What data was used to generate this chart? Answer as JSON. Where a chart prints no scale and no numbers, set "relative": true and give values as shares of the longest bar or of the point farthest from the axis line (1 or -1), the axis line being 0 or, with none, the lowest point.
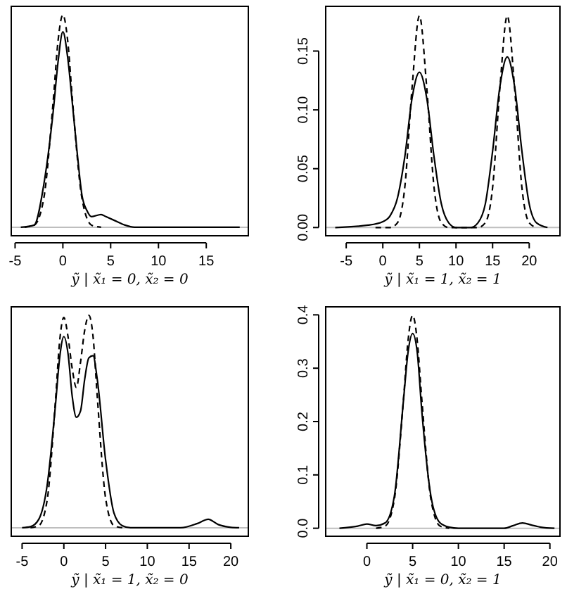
{
  "chart_data": [
    {
      "type": "line",
      "relative": true,
      "xlabel": "ỹ | x̃₁ = 0, x̃₂ = 0",
      "xlim": [
        -5.4,
        19.4
      ],
      "xticks": [
        -5,
        0,
        5,
        10,
        15
      ],
      "ref_lines": [
        {
          "axis": "y",
          "value": 0,
          "color": "#bebebe"
        }
      ],
      "series": [
        {
          "color": "#000000",
          "line_style": "solid",
          "x": [
            -4.4,
            -3,
            -2,
            -1,
            -0.5,
            0,
            0.5,
            1,
            1.5,
            2,
            2.5,
            3,
            4,
            4.5,
            5.5,
            6.5,
            7.5,
            18.5
          ],
          "values": [
            0,
            0.01,
            0.2,
            0.55,
            0.78,
            0.92,
            0.8,
            0.58,
            0.35,
            0.15,
            0.08,
            0.05,
            0.06,
            0.05,
            0.03,
            0.01,
            0,
            0
          ]
        },
        {
          "color": "#000000",
          "line_style": "dashed",
          "x": [
            -4,
            -3,
            -2,
            -1,
            -0.5,
            0,
            0.5,
            1,
            2,
            3,
            4
          ],
          "values": [
            0,
            0.01,
            0.135,
            0.6,
            0.88,
            1,
            0.88,
            0.6,
            0.135,
            0.01,
            0
          ]
        }
      ]
    },
    {
      "type": "line",
      "xlabel": "ỹ | x̃₁ = 1, x̃₂ = 1",
      "xlim": [
        -7.8,
        24.2
      ],
      "xticks": [
        -5,
        0,
        5,
        10,
        15,
        20
      ],
      "ylim": [
        -0.007,
        0.188
      ],
      "yticks": [
        {
          "value": 0,
          "label": "0.00"
        },
        {
          "value": 0.05,
          "label": "0.05"
        },
        {
          "value": 0.1,
          "label": "0.10"
        },
        {
          "value": 0.15,
          "label": "0.15"
        }
      ],
      "ref_lines": [
        {
          "axis": "y",
          "value": 0,
          "color": "#bebebe"
        }
      ],
      "series": [
        {
          "color": "#000000",
          "line_style": "solid",
          "x": [
            -6.5,
            -2,
            0,
            1,
            2,
            3,
            4,
            5,
            6,
            7,
            8,
            9,
            10,
            12,
            13,
            14,
            15,
            16,
            17,
            18,
            19,
            20,
            21,
            22.5
          ],
          "values": [
            0,
            0.002,
            0.005,
            0.01,
            0.025,
            0.06,
            0.11,
            0.132,
            0.11,
            0.06,
            0.02,
            0.004,
            0,
            0,
            0.004,
            0.02,
            0.065,
            0.12,
            0.145,
            0.12,
            0.065,
            0.02,
            0.004,
            0
          ]
        },
        {
          "color": "#000000",
          "line_style": "dashed",
          "x": [
            -1,
            1,
            2,
            3,
            4,
            5,
            6,
            7,
            8,
            9,
            13,
            14,
            15,
            16,
            17,
            18,
            19,
            20,
            21
          ],
          "values": [
            0,
            0,
            0.004,
            0.034,
            0.119,
            0.18,
            0.119,
            0.034,
            0.004,
            0,
            0,
            0.004,
            0.034,
            0.119,
            0.18,
            0.119,
            0.034,
            0.004,
            0
          ]
        }
      ]
    },
    {
      "type": "line",
      "relative": true,
      "xlabel": "ỹ | x̃₁ = 1, x̃₂ = 0",
      "xlim": [
        -6.3,
        22.1
      ],
      "xticks": [
        -5,
        0,
        5,
        10,
        15,
        20
      ],
      "ref_lines": [
        {
          "axis": "y",
          "value": 0,
          "color": "#bebebe"
        }
      ],
      "series": [
        {
          "color": "#000000",
          "line_style": "solid",
          "x": [
            -5,
            -4,
            -3,
            -2,
            -1,
            -0.5,
            0,
            0.5,
            1,
            1.5,
            2,
            2.5,
            3,
            3.5,
            4,
            5,
            6,
            7,
            8,
            14,
            16,
            17.3,
            18.5,
            20,
            21
          ],
          "values": [
            0,
            0.005,
            0.04,
            0.2,
            0.58,
            0.8,
            0.9,
            0.82,
            0.62,
            0.52,
            0.55,
            0.7,
            0.8,
            0.81,
            0.7,
            0.32,
            0.07,
            0.01,
            0,
            0,
            0.02,
            0.04,
            0.015,
            0.002,
            0
          ]
        },
        {
          "color": "#000000",
          "line_style": "dashed",
          "x": [
            -4,
            -3,
            -2,
            -1,
            -0.5,
            0,
            0.5,
            1,
            1.5,
            2,
            2.5,
            3,
            3.5,
            4,
            5,
            6,
            7
          ],
          "values": [
            0,
            0.01,
            0.13,
            0.6,
            0.88,
            0.99,
            0.9,
            0.75,
            0.66,
            0.78,
            0.93,
            1,
            0.9,
            0.62,
            0.14,
            0.01,
            0
          ]
        }
      ]
    },
    {
      "type": "line",
      "xlabel": "ỹ | x̃₁ = 0, x̃₂ = 1",
      "xlim": [
        -4.5,
        21.1
      ],
      "xticks": [
        0,
        5,
        10,
        15,
        20
      ],
      "ylim": [
        -0.015,
        0.415
      ],
      "yticks": [
        {
          "value": 0,
          "label": "0.0"
        },
        {
          "value": 0.1,
          "label": "0.1"
        },
        {
          "value": 0.2,
          "label": "0.2"
        },
        {
          "value": 0.3,
          "label": "0.3"
        },
        {
          "value": 0.4,
          "label": "0.4"
        }
      ],
      "ref_lines": [
        {
          "axis": "y",
          "value": 0,
          "color": "#bebebe"
        }
      ],
      "series": [
        {
          "color": "#000000",
          "line_style": "solid",
          "x": [
            -3,
            -1,
            0,
            1,
            2,
            3,
            4,
            4.5,
            5,
            5.5,
            6,
            7,
            8,
            9,
            10,
            15,
            16,
            17,
            18,
            19,
            20.5
          ],
          "values": [
            0,
            0.004,
            0.008,
            0.005,
            0.01,
            0.06,
            0.24,
            0.33,
            0.365,
            0.33,
            0.22,
            0.06,
            0.01,
            0.002,
            0,
            0,
            0.005,
            0.01,
            0.006,
            0.002,
            0
          ]
        },
        {
          "color": "#000000",
          "line_style": "dashed",
          "x": [
            1,
            2,
            3,
            4,
            4.5,
            5,
            5.5,
            6,
            7,
            8,
            9
          ],
          "values": [
            0,
            0.004,
            0.054,
            0.242,
            0.352,
            0.399,
            0.352,
            0.242,
            0.054,
            0.004,
            0
          ]
        }
      ]
    }
  ]
}
